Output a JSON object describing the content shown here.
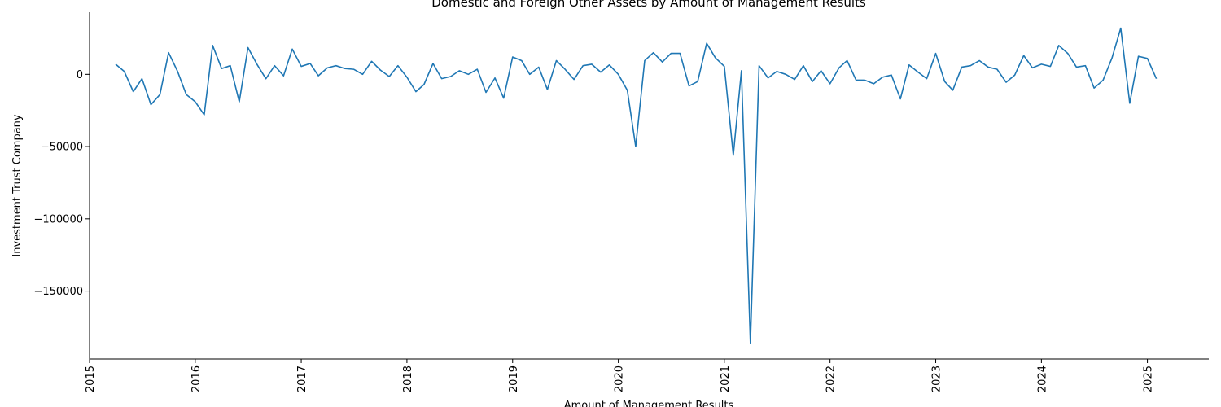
{
  "chart_data": {
    "type": "line",
    "title": "Domestic and Foreign Other Assets by Amount of Management Results",
    "xlabel": "Amount of Management Results",
    "ylabel": "Investment Trust Company",
    "x_ticks": [
      "2015",
      "2016",
      "2017",
      "2018",
      "2019",
      "2020",
      "2021",
      "2022",
      "2023",
      "2024",
      "2025"
    ],
    "y_ticks": [
      0,
      -50000,
      -100000,
      -150000
    ],
    "y_tick_labels": [
      "0",
      "−50000",
      "−100000",
      "−150000"
    ],
    "xlim": [
      "2015-01-01",
      "2025-08-01"
    ],
    "ylim": [
      -197000,
      43000
    ],
    "grid": false,
    "legend": "none",
    "series_color": "#1f77b4",
    "series": [
      {
        "x": [
          "2015-04",
          "2015-05",
          "2015-06",
          "2015-07",
          "2015-08",
          "2015-09",
          "2015-10",
          "2015-11",
          "2015-12",
          "2016-01",
          "2016-02",
          "2016-03",
          "2016-04",
          "2016-05",
          "2016-06",
          "2016-07",
          "2016-08",
          "2016-09",
          "2016-10",
          "2016-11",
          "2016-12",
          "2017-01",
          "2017-02",
          "2017-03",
          "2017-04",
          "2017-05",
          "2017-06",
          "2017-07",
          "2017-08",
          "2017-09",
          "2017-10",
          "2017-11",
          "2017-12",
          "2018-01",
          "2018-02",
          "2018-03",
          "2018-04",
          "2018-05",
          "2018-06",
          "2018-07",
          "2018-08",
          "2018-09",
          "2018-10",
          "2018-11",
          "2018-12",
          "2019-01",
          "2019-02",
          "2019-03",
          "2019-04",
          "2019-05",
          "2019-06",
          "2019-07",
          "2019-08",
          "2019-09",
          "2019-10",
          "2019-11",
          "2019-12",
          "2020-01",
          "2020-02",
          "2020-03",
          "2020-04",
          "2020-05",
          "2020-06",
          "2020-07",
          "2020-08",
          "2020-09",
          "2020-10",
          "2020-11",
          "2020-12",
          "2021-01",
          "2021-02",
          "2021-03",
          "2021-04",
          "2021-05",
          "2021-06",
          "2021-07",
          "2021-08",
          "2021-09",
          "2021-10",
          "2021-11",
          "2021-12",
          "2022-01",
          "2022-02",
          "2022-03",
          "2022-04",
          "2022-05",
          "2022-06",
          "2022-07",
          "2022-08",
          "2022-09",
          "2022-10",
          "2022-11",
          "2022-12",
          "2023-01",
          "2023-02",
          "2023-03",
          "2023-04",
          "2023-05",
          "2023-06",
          "2023-07",
          "2023-08",
          "2023-09",
          "2023-10",
          "2023-11",
          "2023-12",
          "2024-01",
          "2024-02",
          "2024-03",
          "2024-04",
          "2024-05",
          "2024-06",
          "2024-07",
          "2024-08",
          "2024-09",
          "2024-10",
          "2024-11",
          "2024-12",
          "2025-01",
          "2025-02"
        ],
        "values": [
          7000,
          2000,
          -12000,
          -3000,
          -21000,
          -14000,
          15000,
          2000,
          -14000,
          -19000,
          -28000,
          20000,
          4000,
          6000,
          -19000,
          18500,
          7000,
          -3000,
          6000,
          -1000,
          17500,
          5500,
          7500,
          -1000,
          4500,
          6000,
          4000,
          3500,
          0,
          9000,
          3000,
          -1500,
          6000,
          -2000,
          -12000,
          -7000,
          7500,
          -3000,
          -1500,
          2500,
          0,
          3500,
          -12500,
          -2500,
          -16500,
          12000,
          9500,
          0,
          5000,
          -10500,
          9500,
          3500,
          -3500,
          6000,
          7000,
          1500,
          6500,
          0,
          -11000,
          -50000,
          9500,
          15000,
          8500,
          14500,
          14500,
          -8000,
          -5000,
          21500,
          11500,
          5500,
          -56000,
          2500,
          -186000,
          6000,
          -2500,
          2000,
          0,
          -3500,
          6000,
          -5000,
          2500,
          -6500,
          4500,
          9500,
          -4000,
          -4000,
          -6500,
          -2000,
          -500,
          -17000,
          6500,
          1500,
          -3000,
          14500,
          -5000,
          -11000,
          5000,
          6000,
          9500,
          5000,
          3500,
          -5500,
          -500,
          13000,
          4500,
          7000,
          5500,
          20000,
          14500,
          5000,
          6000,
          -9500,
          -4000,
          11500,
          32000,
          -20000,
          12500,
          11000,
          -3000
        ]
      }
    ]
  }
}
